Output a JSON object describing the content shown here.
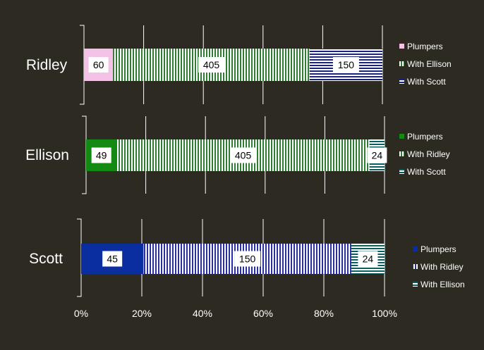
{
  "chart_data": {
    "type": "bar",
    "orientation": "horizontal",
    "stacking": "percent",
    "x_axis": {
      "ticks": [
        "0%",
        "20%",
        "40%",
        "60%",
        "80%",
        "100%"
      ],
      "xlim": [
        0,
        100
      ]
    },
    "grid": true,
    "panels": [
      {
        "category": "Ridley",
        "segments": [
          {
            "name": "Plumpers",
            "value": 60,
            "color": "#f4c2e6",
            "pattern": "solid"
          },
          {
            "name": "With Ellison",
            "value": 405,
            "color": "#2e7d32",
            "pattern": "vertical-stripes"
          },
          {
            "name": "With Scott",
            "value": 150,
            "color": "#1a237e",
            "pattern": "horizontal-stripes"
          }
        ]
      },
      {
        "category": "Ellison",
        "segments": [
          {
            "name": "Plumpers",
            "value": 49,
            "color": "#138a13",
            "pattern": "solid"
          },
          {
            "name": "With Ridley",
            "value": 405,
            "color": "#2e7d32",
            "pattern": "vertical-stripes"
          },
          {
            "name": "With Scott",
            "value": 24,
            "color": "#0b5e5e",
            "pattern": "horizontal-stripes"
          }
        ]
      },
      {
        "category": "Scott",
        "segments": [
          {
            "name": "Plumpers",
            "value": 45,
            "color": "#0a2ea0",
            "pattern": "solid"
          },
          {
            "name": "With Ridley",
            "value": 150,
            "color": "#2a2fa0",
            "pattern": "vertical-stripes"
          },
          {
            "name": "With Ellison",
            "value": 24,
            "color": "#0b5e5e",
            "pattern": "horizontal-stripes"
          }
        ]
      }
    ],
    "legend_position": "right-of-each-bar"
  },
  "colors": {
    "background": "#2d2a22",
    "grid": "#ffffff",
    "label_box": "#ffffff"
  }
}
